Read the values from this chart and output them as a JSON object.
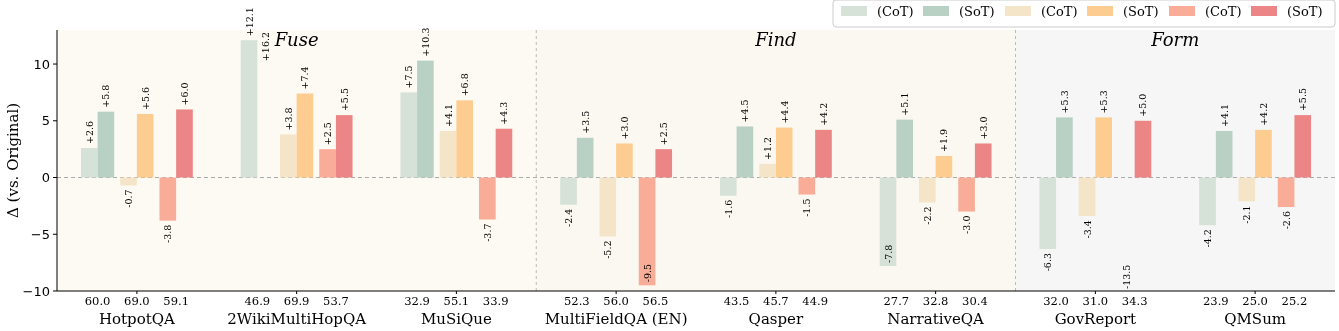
{
  "chart_data": {
    "type": "bar",
    "ylabel": "Δ (vs. Original)",
    "categories": [
      "HotpotQA",
      "2WikiMultiHopQA",
      "MuSiQue",
      "MultiFieldQA (EN)",
      "Qasper",
      "NarrativeQA",
      "GovReport",
      "QMSum"
    ],
    "series": [
      {
        "name": "(CoT)",
        "color": "#d6e1d7",
        "values": [
          2.6,
          12.1,
          7.5,
          -2.4,
          -1.6,
          -7.8,
          -6.3,
          -4.2
        ],
        "value_labels": [
          "+2.6",
          "+12.1",
          "+7.5",
          "-2.4",
          "-1.6",
          "-7.8",
          "-6.3",
          "-4.2"
        ]
      },
      {
        "name": "(SoT)",
        "color": "#b9d0c4",
        "values": [
          5.8,
          null,
          10.3,
          3.5,
          4.5,
          5.1,
          5.3,
          4.1
        ],
        "value_labels": [
          "+5.8",
          "+16.2",
          "+10.3",
          "+3.5",
          "+4.5",
          "+5.1",
          "+5.3",
          "+4.1"
        ]
      },
      {
        "name": "(CoT)",
        "color": "#f4e5c8",
        "values": [
          -0.7,
          3.8,
          4.1,
          -5.2,
          1.2,
          -2.2,
          -3.4,
          -2.1
        ],
        "value_labels": [
          "-0.7",
          "+3.8",
          "+4.1",
          "-5.2",
          "+1.2",
          "-2.2",
          "-3.4",
          "-2.1"
        ]
      },
      {
        "name": "(SoT)",
        "color": "#fdcc90",
        "values": [
          5.6,
          7.4,
          6.8,
          3.0,
          4.4,
          1.9,
          5.3,
          4.2
        ],
        "value_labels": [
          "+5.6",
          "+7.4",
          "+6.8",
          "+3.0",
          "+4.4",
          "+1.9",
          "+5.3",
          "+4.2"
        ]
      },
      {
        "name": "(CoT)",
        "color": "#f9ac97",
        "values": [
          -3.8,
          2.5,
          -3.7,
          -9.5,
          -1.5,
          -3.0,
          null,
          -2.6
        ],
        "value_labels": [
          "-3.8",
          "+2.5",
          "-3.7",
          "-9.5",
          "-1.5",
          "-3.0",
          "-13.5",
          "-2.6"
        ]
      },
      {
        "name": "(SoT)",
        "color": "#ec8586",
        "values": [
          6.0,
          5.5,
          4.3,
          2.5,
          4.2,
          3.0,
          5.0,
          5.5
        ],
        "value_labels": [
          "+6.0",
          "+5.5",
          "+4.3",
          "+2.5",
          "+4.2",
          "+3.0",
          "+5.0",
          "+5.5"
        ]
      }
    ],
    "ylim": [
      -10,
      13
    ],
    "yticks": [
      -10,
      -5,
      0,
      5,
      10
    ],
    "legend": "top right",
    "ref_lines": [
      {
        "axis": "y",
        "value": 0,
        "color": "#aaaaaa",
        "line_style": "dashed"
      }
    ],
    "bands": [
      {
        "axis": "x",
        "from": "HotpotQA",
        "to": "MuSiQue",
        "label": "Fuse",
        "color": "#fdfaf3"
      },
      {
        "axis": "x",
        "from": "MultiFieldQA (EN)",
        "to": "NarrativeQA",
        "label": "Find",
        "color": "#fbf8f1"
      },
      {
        "axis": "x",
        "from": "GovReport",
        "to": "QMSum",
        "label": "Form",
        "color": "#f6f6f6"
      }
    ],
    "annotations": [
      "60.0",
      "69.0",
      "59.1",
      "46.9",
      "69.9",
      "53.7",
      "32.9",
      "55.1",
      "33.9",
      "52.3",
      "56.0",
      "56.5",
      "43.5",
      "45.7",
      "44.9",
      "27.7",
      "32.8",
      "30.4",
      "32.0",
      "31.0",
      "34.3",
      "23.9",
      "25.0",
      "25.2"
    ]
  }
}
